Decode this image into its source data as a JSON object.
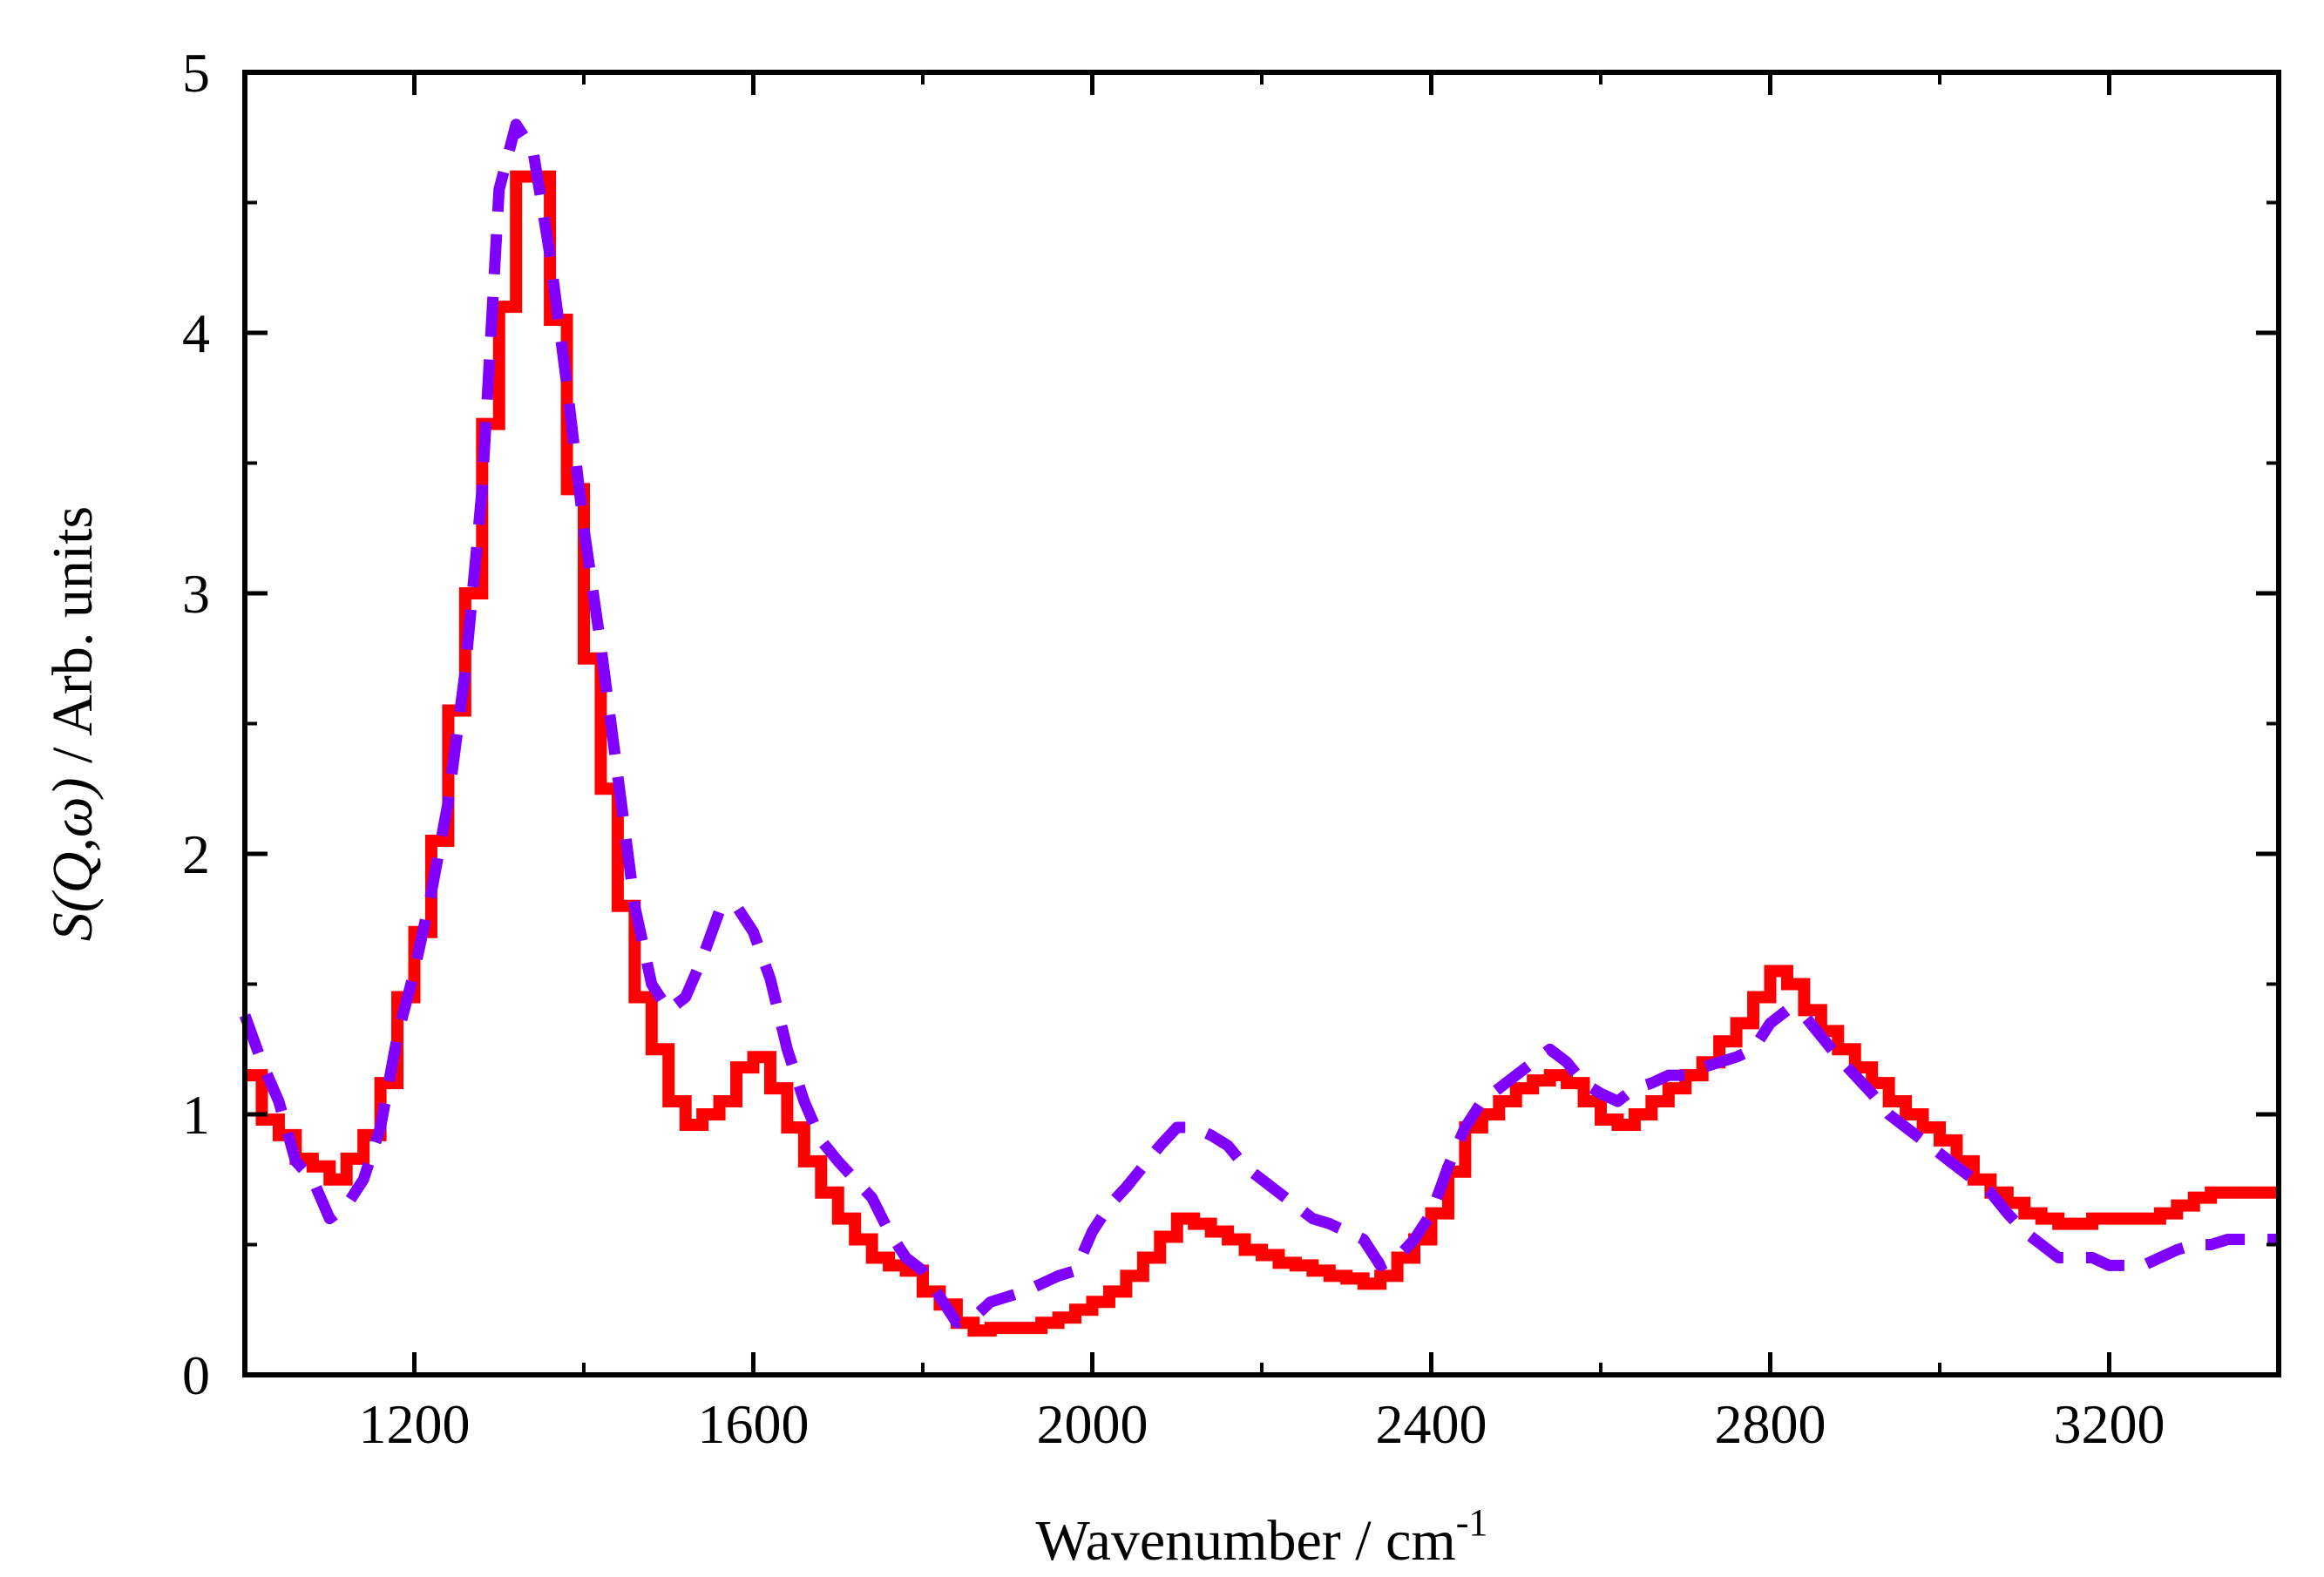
{
  "chart_data": {
    "type": "line",
    "title": "",
    "xlabel": "Wavenumber / cm",
    "xlabel_sup": "-1",
    "ylabel_func": "S(Q,ω)",
    "ylabel_rest": " / Arb. units",
    "xlim": [
      1000,
      3400
    ],
    "ylim": [
      0,
      5
    ],
    "xticks": [
      1200,
      1600,
      2000,
      2400,
      2800,
      3200
    ],
    "yticks": [
      0,
      1,
      2,
      3,
      4,
      5
    ],
    "xtick_labels": [
      "1200",
      "1600",
      "2000",
      "2400",
      "2800",
      "3200"
    ],
    "ytick_labels": [
      "0",
      "1",
      "2",
      "3",
      "4",
      "5"
    ],
    "grid": false,
    "series": [
      {
        "name": "red-solid",
        "color": "#ff0000",
        "style": "solid-step",
        "x": [
          1000,
          1020,
          1040,
          1060,
          1080,
          1100,
          1120,
          1140,
          1160,
          1180,
          1200,
          1220,
          1240,
          1260,
          1280,
          1300,
          1320,
          1340,
          1360,
          1380,
          1400,
          1420,
          1440,
          1460,
          1480,
          1500,
          1520,
          1540,
          1560,
          1580,
          1600,
          1620,
          1640,
          1660,
          1680,
          1700,
          1720,
          1740,
          1760,
          1780,
          1800,
          1820,
          1840,
          1860,
          1880,
          1900,
          1920,
          1940,
          1960,
          1980,
          2000,
          2020,
          2040,
          2060,
          2080,
          2100,
          2120,
          2140,
          2160,
          2180,
          2200,
          2220,
          2240,
          2260,
          2280,
          2300,
          2320,
          2340,
          2360,
          2380,
          2400,
          2420,
          2440,
          2460,
          2480,
          2500,
          2520,
          2540,
          2560,
          2580,
          2600,
          2620,
          2640,
          2660,
          2680,
          2700,
          2720,
          2740,
          2760,
          2780,
          2800,
          2820,
          2840,
          2860,
          2880,
          2900,
          2920,
          2940,
          2960,
          2980,
          3000,
          3020,
          3040,
          3060,
          3080,
          3100,
          3120,
          3140,
          3160,
          3180,
          3200,
          3220,
          3240,
          3260,
          3280,
          3300,
          3320,
          3340,
          3360,
          3380,
          3400
        ],
        "y": [
          1.15,
          0.98,
          0.92,
          0.83,
          0.8,
          0.75,
          0.83,
          0.92,
          1.12,
          1.45,
          1.7,
          2.05,
          2.55,
          3.0,
          3.65,
          4.1,
          4.6,
          4.6,
          4.05,
          3.4,
          2.75,
          2.25,
          1.8,
          1.45,
          1.25,
          1.05,
          0.96,
          1.0,
          1.05,
          1.18,
          1.22,
          1.1,
          0.95,
          0.82,
          0.7,
          0.6,
          0.52,
          0.45,
          0.42,
          0.4,
          0.32,
          0.27,
          0.2,
          0.17,
          0.18,
          0.18,
          0.18,
          0.2,
          0.22,
          0.25,
          0.28,
          0.32,
          0.38,
          0.45,
          0.53,
          0.6,
          0.58,
          0.55,
          0.52,
          0.48,
          0.46,
          0.43,
          0.42,
          0.4,
          0.38,
          0.37,
          0.35,
          0.38,
          0.45,
          0.52,
          0.62,
          0.78,
          0.95,
          1.0,
          1.05,
          1.1,
          1.13,
          1.15,
          1.12,
          1.05,
          0.98,
          0.96,
          1.0,
          1.05,
          1.1,
          1.15,
          1.2,
          1.28,
          1.35,
          1.45,
          1.55,
          1.5,
          1.4,
          1.32,
          1.25,
          1.18,
          1.12,
          1.05,
          1.0,
          0.95,
          0.9,
          0.82,
          0.75,
          0.7,
          0.66,
          0.62,
          0.6,
          0.58,
          0.58,
          0.6,
          0.6,
          0.6,
          0.6,
          0.62,
          0.65,
          0.68,
          0.7,
          0.7,
          0.7,
          0.7,
          0.7
        ]
      },
      {
        "name": "purple-dashed",
        "color": "#7f00ff",
        "style": "dashed",
        "x": [
          1000,
          1020,
          1040,
          1060,
          1080,
          1100,
          1120,
          1140,
          1160,
          1180,
          1200,
          1220,
          1240,
          1260,
          1280,
          1300,
          1320,
          1340,
          1360,
          1380,
          1400,
          1420,
          1440,
          1460,
          1480,
          1500,
          1520,
          1540,
          1560,
          1580,
          1600,
          1620,
          1640,
          1660,
          1680,
          1700,
          1720,
          1740,
          1760,
          1780,
          1800,
          1820,
          1840,
          1860,
          1880,
          1900,
          1920,
          1940,
          1960,
          1980,
          2000,
          2020,
          2040,
          2060,
          2080,
          2100,
          2120,
          2140,
          2160,
          2180,
          2200,
          2220,
          2240,
          2260,
          2280,
          2300,
          2320,
          2340,
          2360,
          2380,
          2400,
          2420,
          2440,
          2460,
          2480,
          2500,
          2520,
          2540,
          2560,
          2580,
          2600,
          2620,
          2640,
          2660,
          2680,
          2700,
          2720,
          2740,
          2760,
          2780,
          2800,
          2820,
          2840,
          2860,
          2880,
          2900,
          2920,
          2940,
          2960,
          2980,
          3000,
          3020,
          3040,
          3060,
          3080,
          3100,
          3120,
          3140,
          3160,
          3180,
          3200,
          3220,
          3240,
          3260,
          3280,
          3300,
          3320,
          3340,
          3360,
          3380,
          3400
        ],
        "y": [
          1.38,
          1.2,
          1.05,
          0.82,
          0.75,
          0.6,
          0.65,
          0.75,
          0.95,
          1.3,
          1.55,
          1.85,
          2.2,
          2.7,
          3.4,
          4.55,
          4.8,
          4.7,
          4.3,
          3.8,
          3.25,
          2.8,
          2.3,
          1.8,
          1.5,
          1.4,
          1.45,
          1.6,
          1.78,
          1.8,
          1.7,
          1.52,
          1.25,
          1.05,
          0.9,
          0.82,
          0.75,
          0.68,
          0.55,
          0.45,
          0.4,
          0.3,
          0.2,
          0.22,
          0.28,
          0.3,
          0.32,
          0.35,
          0.38,
          0.4,
          0.55,
          0.65,
          0.72,
          0.8,
          0.88,
          0.95,
          0.95,
          0.92,
          0.88,
          0.8,
          0.75,
          0.7,
          0.65,
          0.6,
          0.58,
          0.55,
          0.52,
          0.42,
          0.45,
          0.52,
          0.62,
          0.8,
          0.95,
          1.05,
          1.1,
          1.15,
          1.2,
          1.25,
          1.2,
          1.12,
          1.08,
          1.05,
          1.1,
          1.12,
          1.15,
          1.15,
          1.18,
          1.2,
          1.22,
          1.25,
          1.35,
          1.4,
          1.38,
          1.3,
          1.22,
          1.15,
          1.08,
          1.0,
          0.95,
          0.9,
          0.85,
          0.8,
          0.75,
          0.7,
          0.62,
          0.55,
          0.5,
          0.45,
          0.45,
          0.45,
          0.42,
          0.42,
          0.42,
          0.45,
          0.48,
          0.5,
          0.5,
          0.52,
          0.52,
          0.52,
          0.52
        ]
      }
    ]
  }
}
